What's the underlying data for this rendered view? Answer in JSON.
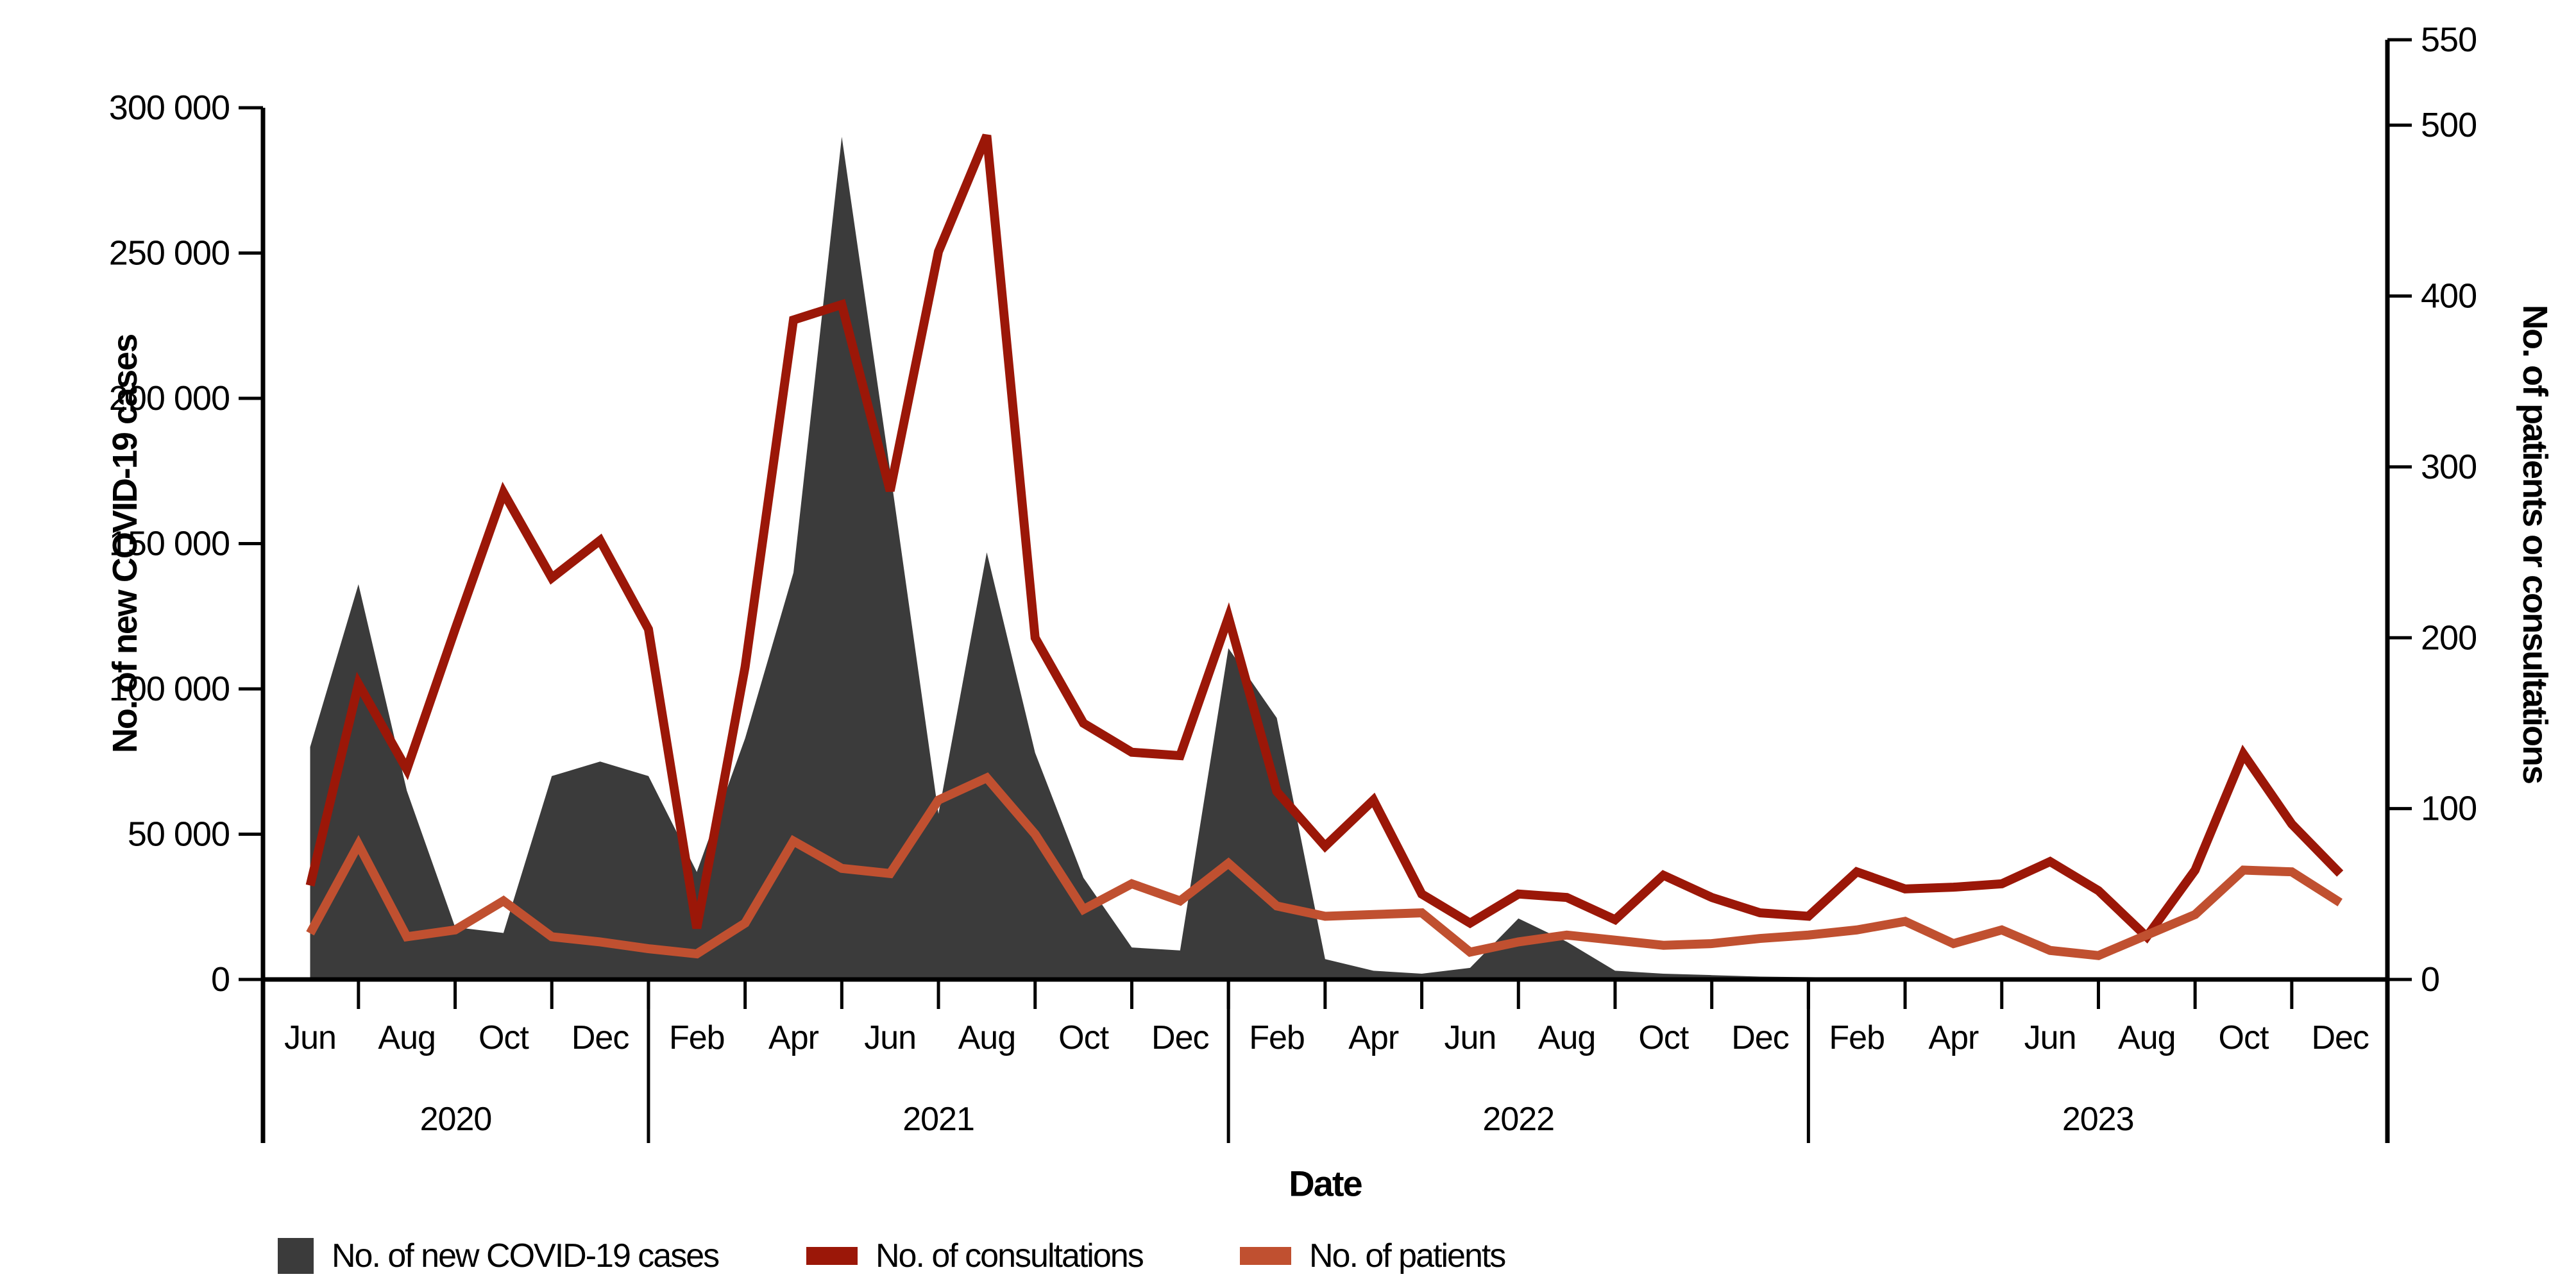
{
  "axes": {
    "left": {
      "title": "No. of new COVID-19 cases"
    },
    "right": {
      "title": "No. of patients or consultations"
    },
    "x": {
      "title": "Date"
    }
  },
  "legend": {
    "items": [
      {
        "label": "No. of new COVID-19 cases",
        "swatch": "area",
        "color": "#3b3b3b"
      },
      {
        "label": "No. of consultations",
        "swatch": "line",
        "color": "#9b1708"
      },
      {
        "label": "No. of patients",
        "swatch": "line",
        "color": "#c05030"
      }
    ]
  },
  "chart_data": {
    "type": "area",
    "title": "",
    "xlabel": "Date",
    "categories": [
      "Jun 2020",
      "Jul 2020",
      "Aug 2020",
      "Sep 2020",
      "Oct 2020",
      "Nov 2020",
      "Dec 2020",
      "Jan 2021",
      "Feb 2021",
      "Mar 2021",
      "Apr 2021",
      "May 2021",
      "Jun 2021",
      "Jul 2021",
      "Aug 2021",
      "Sep 2021",
      "Oct 2021",
      "Nov 2021",
      "Dec 2021",
      "Jan 2022",
      "Feb 2022",
      "Mar 2022",
      "Apr 2022",
      "May 2022",
      "Jun 2022",
      "Jul 2022",
      "Aug 2022",
      "Sep 2022",
      "Oct 2022",
      "Nov 2022",
      "Dec 2022",
      "Jan 2023",
      "Feb 2023",
      "Mar 2023",
      "Apr 2023",
      "May 2023",
      "Jun 2023",
      "Jul 2023",
      "Aug 2023",
      "Sep 2023",
      "Oct 2023",
      "Nov 2023",
      "Dec 2023"
    ],
    "month_tick_labels": [
      "Jun",
      "Aug",
      "Oct",
      "Dec",
      "Feb",
      "Apr",
      "Jun",
      "Aug",
      "Oct",
      "Dec",
      "Feb",
      "Apr",
      "Jun",
      "Aug",
      "Oct",
      "Dec",
      "Feb",
      "Apr",
      "Jun",
      "Aug",
      "Oct",
      "Dec"
    ],
    "year_labels": [
      "2020",
      "2021",
      "2022",
      "2023"
    ],
    "year_start_indices": [
      7,
      19,
      31
    ],
    "series": [
      {
        "name": "No. of new COVID-19 cases",
        "type": "area",
        "axis": "left",
        "color": "#3b3b3b",
        "values": [
          80000,
          136000,
          65000,
          18000,
          16000,
          70000,
          75000,
          70000,
          37000,
          83000,
          140000,
          290000,
          175000,
          57000,
          147000,
          78000,
          35000,
          11000,
          10000,
          114000,
          90000,
          7000,
          3000,
          2000,
          4000,
          21000,
          13000,
          3000,
          2000,
          1500,
          1000,
          800,
          600,
          500,
          500,
          400,
          400,
          300,
          300,
          300,
          400,
          300,
          300
        ]
      },
      {
        "name": "No. of consultations",
        "type": "line",
        "axis": "right",
        "color": "#9b1708",
        "values": [
          55,
          173,
          123,
          205,
          285,
          235,
          257,
          205,
          30,
          183,
          386,
          395,
          286,
          426,
          494,
          200,
          150,
          133,
          131,
          212,
          110,
          78,
          105,
          50,
          33,
          50,
          48,
          35,
          61,
          48,
          39,
          37,
          63,
          53,
          54,
          56,
          69,
          52,
          25,
          64,
          132,
          91,
          62
        ]
      },
      {
        "name": "No. of patients",
        "type": "line",
        "axis": "right",
        "color": "#c05030",
        "values": [
          27,
          79,
          25,
          29,
          46,
          25,
          22,
          18,
          15,
          33,
          81,
          65,
          62,
          105,
          118,
          85,
          41,
          56,
          46,
          68,
          43,
          37,
          38,
          39,
          16,
          22,
          26,
          23,
          20,
          21,
          24,
          26,
          29,
          34,
          21,
          29,
          17,
          14,
          26,
          38,
          64,
          63,
          45
        ]
      }
    ],
    "left_axis": {
      "ylim": [
        0,
        300000
      ],
      "ticks": [
        0,
        50000,
        100000,
        150000,
        200000,
        250000,
        300000
      ],
      "tick_labels": [
        "0",
        "50 000",
        "100 000",
        "150 000",
        "200 000",
        "250 000",
        "300 000"
      ]
    },
    "right_axis": {
      "ylim": [
        0,
        550
      ],
      "ticks": [
        0,
        100,
        200,
        300,
        400,
        500,
        550
      ],
      "tick_labels": [
        "0",
        "100",
        "200",
        "300",
        "400",
        "500",
        "550"
      ]
    },
    "grid": "off",
    "legend_position": "bottom-left"
  }
}
